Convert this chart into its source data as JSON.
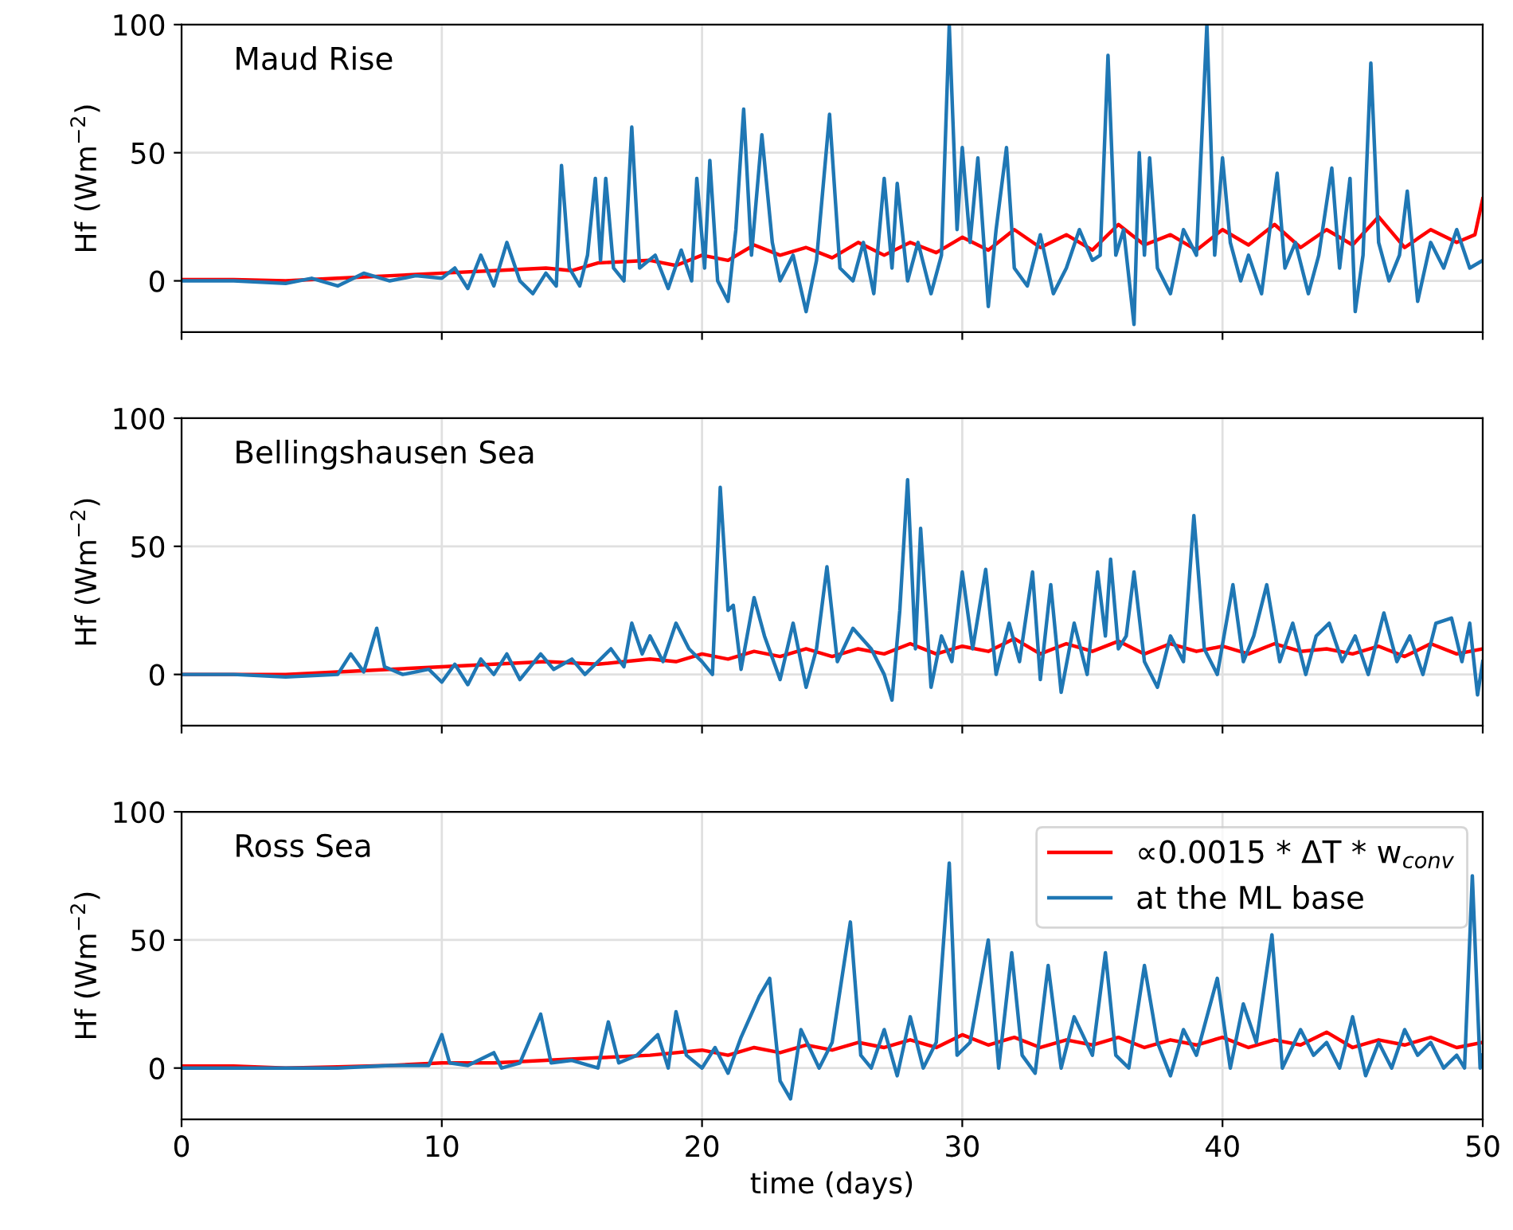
{
  "chart_data": [
    {
      "type": "line",
      "ylabel": "Hf (Wm$^{−2}$)",
      "annotations": [
        "Maud Rise"
      ],
      "xlim": [
        0,
        50
      ],
      "xticks": [
        0,
        10,
        20,
        30,
        40,
        50
      ],
      "ylim": [
        -20,
        100
      ],
      "yticks": [
        0,
        50,
        100
      ],
      "grid": true,
      "tick_labels": "y",
      "legend": false,
      "series": [
        {
          "color": "#ff0000",
          "x": [
            0,
            2,
            4,
            6,
            8,
            10,
            12,
            14,
            15,
            16,
            18,
            19,
            20,
            21,
            22,
            23,
            24,
            25,
            26,
            27,
            28,
            29,
            30,
            31,
            32,
            33,
            34,
            35,
            36,
            37,
            38,
            39,
            40,
            41,
            42,
            43,
            44,
            45,
            46,
            47,
            48,
            49,
            49.7,
            50
          ],
          "values": [
            0.5,
            0.5,
            0,
            1,
            2,
            3,
            4,
            5,
            4,
            7,
            8,
            6,
            10,
            8,
            14,
            10,
            13,
            9,
            15,
            10,
            15,
            11,
            17,
            12,
            20,
            13,
            18,
            12,
            22,
            14,
            18,
            12,
            20,
            14,
            22,
            13,
            20,
            14,
            25,
            13,
            20,
            15,
            18,
            32
          ]
        },
        {
          "color": "#1f77b4",
          "x": [
            0,
            2,
            4,
            5,
            6,
            7,
            8,
            9,
            10,
            10.5,
            11,
            11.5,
            12,
            12.5,
            13,
            13.5,
            14,
            14.4,
            14.6,
            14.9,
            15.3,
            15.6,
            15.9,
            16.1,
            16.3,
            16.6,
            17.0,
            17.3,
            17.6,
            18.2,
            18.7,
            19.2,
            19.6,
            19.8,
            20.1,
            20.3,
            20.6,
            21.0,
            21.3,
            21.6,
            21.9,
            22.3,
            22.7,
            23.0,
            23.5,
            24.0,
            24.4,
            24.9,
            25.3,
            25.8,
            26.2,
            26.6,
            27.0,
            27.3,
            27.5,
            27.9,
            28.3,
            28.8,
            29.2,
            29.5,
            29.8,
            30.0,
            30.3,
            30.6,
            31.0,
            31.3,
            31.7,
            32.0,
            32.5,
            33.0,
            33.5,
            34.0,
            34.5,
            35.0,
            35.3,
            35.6,
            35.9,
            36.2,
            36.6,
            36.8,
            37.0,
            37.2,
            37.5,
            38.0,
            38.5,
            39.0,
            39.4,
            39.7,
            40.0,
            40.3,
            40.7,
            41.0,
            41.5,
            42.1,
            42.4,
            42.8,
            43.3,
            43.7,
            44.2,
            44.5,
            44.9,
            45.1,
            45.4,
            45.7,
            46.0,
            46.4,
            46.8,
            47.1,
            47.5,
            48,
            48.5,
            49,
            49.5,
            50
          ],
          "values": [
            0,
            0,
            -1,
            1,
            -2,
            3,
            0,
            2,
            1,
            5,
            -3,
            10,
            -2,
            15,
            0,
            -5,
            3,
            -2,
            45,
            5,
            -2,
            10,
            40,
            8,
            40,
            5,
            0,
            60,
            5,
            10,
            -3,
            12,
            0,
            40,
            5,
            47,
            0,
            -8,
            20,
            67,
            10,
            57,
            15,
            0,
            10,
            -12,
            8,
            65,
            5,
            0,
            15,
            -5,
            40,
            5,
            38,
            0,
            15,
            -5,
            10,
            100,
            20,
            52,
            15,
            48,
            -10,
            20,
            52,
            5,
            -2,
            18,
            -5,
            5,
            20,
            8,
            10,
            88,
            10,
            20,
            -17,
            50,
            10,
            48,
            5,
            -5,
            20,
            10,
            100,
            10,
            48,
            15,
            0,
            10,
            -5,
            42,
            5,
            15,
            -5,
            10,
            44,
            5,
            40,
            -12,
            10,
            85,
            15,
            0,
            10,
            35,
            -8,
            15,
            5,
            20,
            5,
            8
          ]
        }
      ]
    },
    {
      "type": "line",
      "ylabel": "Hf (Wm$^{−2}$)",
      "annotations": [
        "Bellingshausen Sea"
      ],
      "xlim": [
        0,
        50
      ],
      "xticks": [
        0,
        10,
        20,
        30,
        40,
        50
      ],
      "ylim": [
        -20,
        100
      ],
      "yticks": [
        0,
        50,
        100
      ],
      "grid": true,
      "tick_labels": "y",
      "legend": false,
      "series": [
        {
          "color": "#ff0000",
          "x": [
            0,
            2,
            4,
            6,
            8,
            10,
            12,
            14,
            16,
            18,
            19,
            20,
            21,
            22,
            23,
            24,
            25,
            26,
            27,
            28,
            29,
            30,
            31,
            32,
            33,
            34,
            35,
            36,
            37,
            38,
            39,
            40,
            41,
            42,
            43,
            44,
            45,
            46,
            47,
            48,
            49,
            50
          ],
          "values": [
            0,
            0,
            0,
            1,
            2,
            3,
            4,
            5,
            4,
            6,
            5,
            8,
            6,
            9,
            7,
            10,
            7,
            10,
            8,
            12,
            8,
            11,
            9,
            14,
            8,
            12,
            9,
            13,
            8,
            12,
            9,
            11,
            8,
            12,
            9,
            10,
            8,
            11,
            7,
            12,
            8,
            10
          ]
        },
        {
          "color": "#1f77b4",
          "x": [
            0,
            2,
            4,
            6,
            6.5,
            7,
            7.5,
            7.8,
            8.5,
            9.5,
            10,
            10.5,
            11,
            11.5,
            12,
            12.5,
            13,
            13.8,
            14.3,
            15,
            15.5,
            16,
            16.5,
            17,
            17.3,
            17.7,
            18,
            18.5,
            19,
            19.5,
            20,
            20.4,
            20.7,
            21.0,
            21.2,
            21.5,
            22.0,
            22.4,
            23,
            23.5,
            24,
            24.4,
            24.8,
            25.2,
            25.8,
            26.5,
            27,
            27.3,
            27.6,
            27.9,
            28.2,
            28.4,
            28.8,
            29.2,
            29.6,
            30.0,
            30.4,
            30.9,
            31.3,
            31.8,
            32.2,
            32.7,
            33.0,
            33.4,
            33.8,
            34.3,
            34.8,
            35.2,
            35.5,
            35.7,
            36.0,
            36.3,
            36.6,
            37.0,
            37.5,
            38.0,
            38.5,
            38.9,
            39.3,
            39.8,
            40.4,
            40.8,
            41.2,
            41.7,
            42.2,
            42.7,
            43.2,
            43.6,
            44.1,
            44.6,
            45.1,
            45.6,
            46.2,
            46.7,
            47.2,
            47.7,
            48.2,
            48.8,
            49.2,
            49.5,
            49.8,
            50
          ],
          "values": [
            0,
            0,
            -1,
            0,
            8,
            1,
            18,
            3,
            0,
            2,
            -3,
            4,
            -4,
            6,
            0,
            8,
            -2,
            8,
            2,
            6,
            0,
            5,
            10,
            3,
            20,
            8,
            15,
            5,
            20,
            10,
            5,
            0,
            73,
            25,
            27,
            2,
            30,
            15,
            -2,
            20,
            -5,
            10,
            42,
            5,
            18,
            10,
            0,
            -10,
            25,
            76,
            10,
            57,
            -5,
            15,
            5,
            40,
            10,
            41,
            0,
            20,
            5,
            40,
            -2,
            35,
            -7,
            20,
            0,
            40,
            15,
            45,
            10,
            15,
            40,
            5,
            -5,
            15,
            5,
            62,
            10,
            0,
            35,
            5,
            15,
            35,
            5,
            20,
            0,
            15,
            20,
            5,
            15,
            0,
            24,
            5,
            15,
            0,
            20,
            22,
            5,
            20,
            -8,
            5
          ]
        }
      ]
    },
    {
      "type": "line",
      "ylabel": "Hf (Wm$^{−2}$)",
      "xlabel": "time (days)",
      "annotations": [
        "Ross Sea"
      ],
      "xlim": [
        0,
        50
      ],
      "xticks": [
        0,
        10,
        20,
        30,
        40,
        50
      ],
      "ylim": [
        -20,
        100
      ],
      "yticks": [
        0,
        50,
        100
      ],
      "grid": true,
      "legend": "top right",
      "series": [
        {
          "name": "∝0.0015 * ΔT * w$_{conv}$",
          "color": "#ff0000",
          "x": [
            0,
            2,
            4,
            6,
            8,
            10,
            12,
            14,
            16,
            18,
            20,
            21,
            22,
            23,
            24,
            25,
            26,
            27,
            28,
            29,
            30,
            31,
            32,
            33,
            34,
            35,
            36,
            37,
            38,
            39,
            40,
            41,
            42,
            43,
            44,
            45,
            46,
            47,
            48,
            49,
            50
          ],
          "values": [
            0.8,
            0.8,
            0,
            0.5,
            1,
            2,
            2,
            3,
            4,
            5,
            7,
            5,
            8,
            6,
            9,
            7,
            10,
            8,
            11,
            8,
            13,
            9,
            12,
            8,
            11,
            9,
            12,
            8,
            11,
            9,
            12,
            8,
            11,
            9,
            14,
            8,
            11,
            9,
            12,
            8,
            10
          ]
        },
        {
          "name": "at the ML base",
          "color": "#1f77b4",
          "x": [
            0,
            2,
            4,
            6,
            8,
            9.5,
            10,
            10.3,
            11,
            12,
            12.3,
            13,
            13.8,
            14.2,
            15,
            16,
            16.4,
            16.8,
            17.5,
            18.3,
            18.7,
            19,
            19.4,
            20,
            20.5,
            21,
            21.5,
            22.2,
            22.6,
            23.0,
            23.4,
            23.8,
            24.5,
            25,
            25.7,
            26.1,
            26.5,
            27,
            27.5,
            28,
            28.5,
            29,
            29.5,
            29.8,
            30.3,
            31.0,
            31.4,
            31.9,
            32.3,
            32.8,
            33.3,
            33.8,
            34.3,
            35,
            35.5,
            35.9,
            36.4,
            37,
            37.5,
            38,
            38.5,
            39,
            39.8,
            40.3,
            40.8,
            41.3,
            41.9,
            42.3,
            43,
            43.5,
            44,
            44.5,
            45,
            45.5,
            46,
            46.5,
            47,
            47.5,
            48,
            48.5,
            49,
            49.3,
            49.6,
            49.9,
            50
          ],
          "values": [
            0,
            0,
            0,
            0,
            1,
            1,
            13,
            2,
            1,
            6,
            0,
            2,
            21,
            2,
            3,
            0,
            18,
            2,
            5,
            13,
            0,
            22,
            5,
            0,
            8,
            -2,
            12,
            28,
            35,
            -5,
            -12,
            15,
            0,
            10,
            57,
            5,
            0,
            15,
            -3,
            20,
            0,
            10,
            80,
            5,
            10,
            50,
            0,
            45,
            5,
            -2,
            40,
            0,
            20,
            5,
            45,
            5,
            0,
            40,
            10,
            -3,
            15,
            5,
            35,
            0,
            25,
            10,
            52,
            0,
            15,
            5,
            10,
            0,
            20,
            -3,
            10,
            0,
            15,
            5,
            10,
            0,
            5,
            0,
            75,
            0,
            5
          ]
        }
      ]
    }
  ]
}
